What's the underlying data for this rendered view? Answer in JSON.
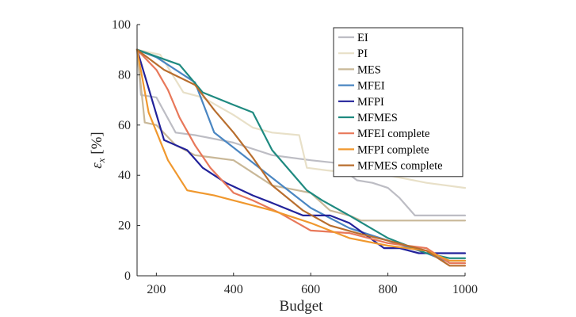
{
  "chart_data": {
    "type": "line",
    "title": "",
    "xlabel": "Budget",
    "ylabel_var": "ε",
    "ylabel_sub": "x",
    "ylabel_unit": "[%]",
    "xlim": [
      150,
      1000
    ],
    "ylim": [
      0,
      100
    ],
    "xticks": [
      200,
      400,
      600,
      800,
      1000
    ],
    "yticks": [
      0,
      20,
      40,
      60,
      80,
      100
    ],
    "xtick_labels": [
      "200",
      "400",
      "600",
      "800",
      "1000"
    ],
    "ytick_labels": [
      "0",
      "20",
      "40",
      "60",
      "80",
      "100"
    ],
    "grid": false,
    "legend_position": "top-right",
    "series": [
      {
        "name": "EI",
        "color": "#bdbdc4",
        "x": [
          150,
          160,
          200,
          250,
          300,
          400,
          500,
          600,
          660,
          720,
          760,
          800,
          830,
          870,
          1000
        ],
        "y": [
          90,
          72,
          71,
          57,
          56,
          53,
          48,
          46,
          45,
          38,
          37,
          35,
          31,
          24,
          24
        ]
      },
      {
        "name": "PI",
        "color": "#e8e0c8",
        "x": [
          150,
          210,
          270,
          320,
          400,
          450,
          500,
          570,
          590,
          640,
          700,
          800,
          900,
          1000
        ],
        "y": [
          90,
          88,
          73,
          71,
          64,
          59,
          57,
          56,
          43,
          42,
          41,
          40,
          37,
          35
        ]
      },
      {
        "name": "MES",
        "color": "#c9b898",
        "x": [
          150,
          170,
          200,
          250,
          300,
          350,
          400,
          500,
          600,
          650,
          700,
          730,
          800,
          900,
          1000
        ],
        "y": [
          90,
          61,
          60,
          52,
          48,
          47,
          46,
          36,
          33,
          26,
          24,
          22,
          22,
          22,
          22
        ]
      },
      {
        "name": "MFEI",
        "color": "#4a86c2",
        "x": [
          150,
          200,
          250,
          300,
          350,
          400,
          500,
          600,
          650,
          700,
          800,
          900,
          950,
          1000
        ],
        "y": [
          90,
          87,
          82,
          77,
          57,
          51,
          39,
          27,
          23,
          19,
          14,
          9,
          6,
          6
        ]
      },
      {
        "name": "MFPI",
        "color": "#22229a",
        "x": [
          150,
          220,
          280,
          320,
          380,
          450,
          500,
          580,
          650,
          700,
          790,
          830,
          880,
          1000
        ],
        "y": [
          90,
          54,
          50,
          43,
          37,
          32,
          29,
          24,
          24,
          21,
          11,
          11,
          9,
          9
        ]
      },
      {
        "name": "MFMES",
        "color": "#1f8a80",
        "x": [
          150,
          260,
          320,
          400,
          450,
          500,
          590,
          630,
          700,
          800,
          900,
          960,
          1000
        ],
        "y": [
          90,
          84,
          73,
          68,
          65,
          50,
          34,
          30,
          24,
          15,
          9,
          7,
          7
        ]
      },
      {
        "name": "MFEI complete",
        "color": "#e8785a",
        "x": [
          150,
          200,
          230,
          260,
          300,
          340,
          400,
          450,
          520,
          600,
          700,
          800,
          900,
          960,
          1000
        ],
        "y": [
          90,
          82,
          74,
          63,
          52,
          43,
          33,
          30,
          25,
          18,
          17,
          13,
          11,
          5,
          5
        ]
      },
      {
        "name": "MFPI complete",
        "color": "#f0982e",
        "x": [
          150,
          180,
          230,
          280,
          350,
          400,
          500,
          600,
          700,
          800,
          900,
          960,
          1000
        ],
        "y": [
          90,
          65,
          46,
          34,
          32,
          30,
          26,
          21,
          15,
          12,
          10,
          6,
          6
        ]
      },
      {
        "name": "MFMES complete",
        "color": "#b86e2e",
        "x": [
          150,
          220,
          300,
          350,
          400,
          450,
          500,
          580,
          650,
          720,
          800,
          900,
          960,
          1000
        ],
        "y": [
          90,
          82,
          76,
          66,
          57,
          47,
          36,
          26,
          20,
          17,
          14,
          10,
          4,
          4
        ]
      }
    ]
  }
}
